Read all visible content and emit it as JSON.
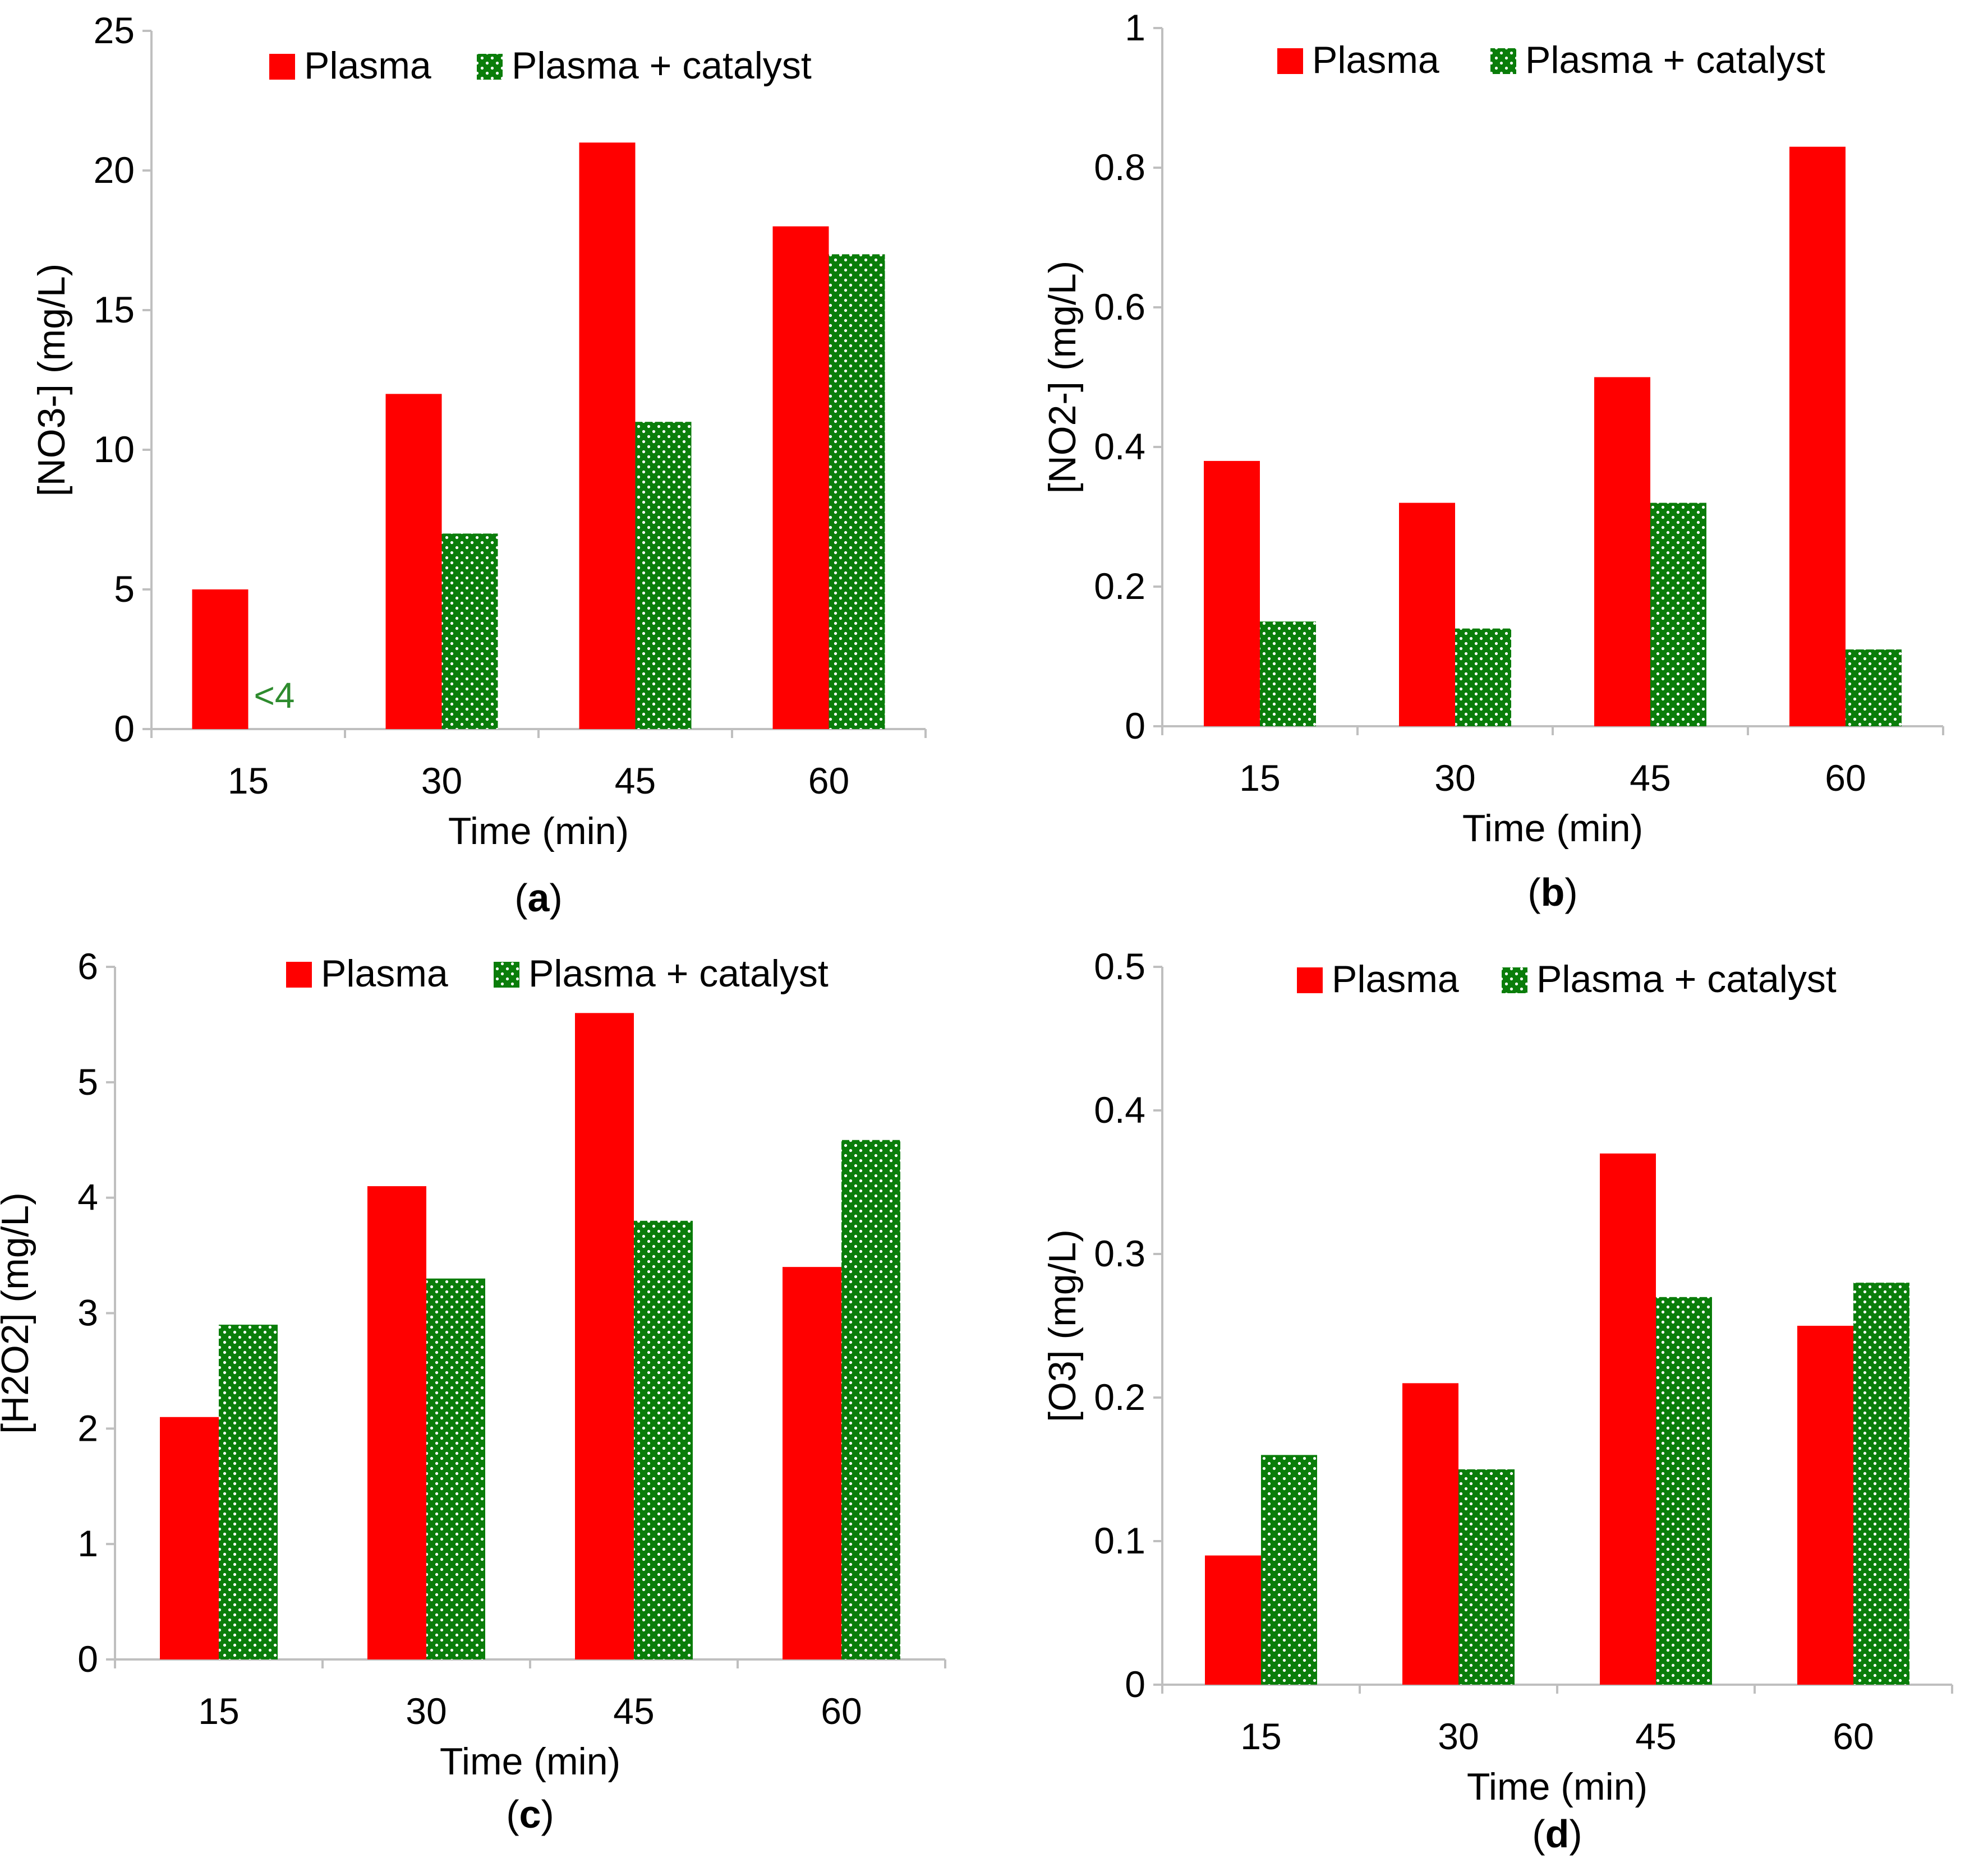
{
  "colors": {
    "plasma": "#ff0000",
    "catalyst": "#0a7d0a",
    "catalyst_dots": "#ffffff",
    "axis": "#bfbfbf",
    "annotation": "#2e8b2e"
  },
  "chart_data": [
    {
      "panel": "a",
      "type": "bar",
      "caption_open": "(",
      "caption_letter": "a",
      "caption_close": ")",
      "categories": [
        "15",
        "30",
        "45",
        "60"
      ],
      "series": [
        {
          "name": "Plasma",
          "values": [
            5,
            12,
            21,
            18
          ]
        },
        {
          "name": "Plasma + catalyst",
          "values": [
            0,
            7,
            11,
            17
          ]
        }
      ],
      "xlabel": "Time (min)",
      "ylabel": "[NO3-] (mg/L)",
      "ylim": [
        0,
        25
      ],
      "yticks": [
        "0",
        "5",
        "10",
        "15",
        "20",
        "25"
      ],
      "legend": "top",
      "grid": false,
      "annotations": [
        {
          "text": "<4",
          "category": "15",
          "series": "Plasma + catalyst"
        }
      ]
    },
    {
      "panel": "b",
      "type": "bar",
      "caption_open": "(",
      "caption_letter": "b",
      "caption_close": ")",
      "categories": [
        "15",
        "30",
        "45",
        "60"
      ],
      "series": [
        {
          "name": "Plasma",
          "values": [
            0.38,
            0.32,
            0.5,
            0.83
          ]
        },
        {
          "name": "Plasma + catalyst",
          "values": [
            0.15,
            0.14,
            0.32,
            0.11
          ]
        }
      ],
      "xlabel": "Time (min)",
      "ylabel": "[NO2-] (mg/L)",
      "ylim": [
        0,
        1
      ],
      "yticks": [
        "0",
        "0.2",
        "0.4",
        "0.6",
        "0.8",
        "1"
      ],
      "legend": "top",
      "grid": false
    },
    {
      "panel": "c",
      "type": "bar",
      "caption_open": "(",
      "caption_letter": "c",
      "caption_close": ")",
      "categories": [
        "15",
        "30",
        "45",
        "60"
      ],
      "series": [
        {
          "name": "Plasma",
          "values": [
            2.1,
            4.1,
            5.6,
            3.4
          ]
        },
        {
          "name": "Plasma + catalyst",
          "values": [
            2.9,
            3.3,
            3.8,
            4.5
          ]
        }
      ],
      "xlabel": "Time (min)",
      "ylabel": "[H2O2] (mg/L)",
      "ylim": [
        0,
        6
      ],
      "yticks": [
        "0",
        "1",
        "2",
        "3",
        "4",
        "5",
        "6"
      ],
      "legend": "top",
      "grid": false
    },
    {
      "panel": "d",
      "type": "bar",
      "caption_open": "(",
      "caption_letter": "d",
      "caption_close": ")",
      "categories": [
        "15",
        "30",
        "45",
        "60"
      ],
      "series": [
        {
          "name": "Plasma",
          "values": [
            0.09,
            0.21,
            0.37,
            0.25
          ]
        },
        {
          "name": "Plasma + catalyst",
          "values": [
            0.16,
            0.15,
            0.27,
            0.28
          ]
        }
      ],
      "xlabel": "Time (min)",
      "ylabel": "[O3] (mg/L)",
      "ylim": [
        0,
        0.5
      ],
      "yticks": [
        "0",
        "0.1",
        "0.2",
        "0.3",
        "0.4",
        "0.5"
      ],
      "legend": "top",
      "grid": false
    }
  ]
}
